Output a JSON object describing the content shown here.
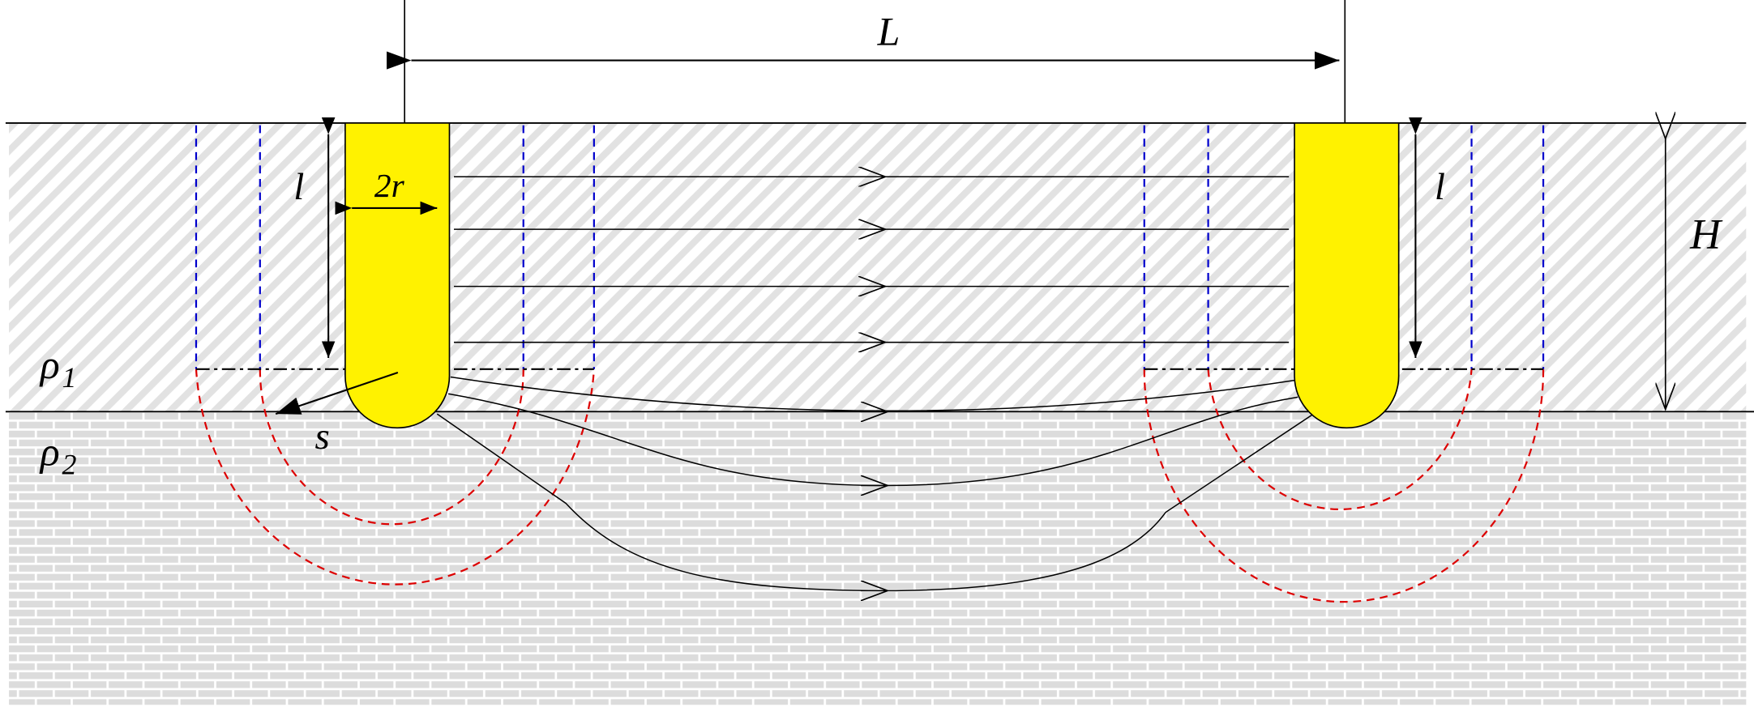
{
  "labels": {
    "length": "L",
    "depth_left": "l",
    "depth_right": "l",
    "diameter": "2r",
    "layer_thickness": "H",
    "spacing": "s"
  },
  "layers": {
    "top": {
      "rho": "ρ",
      "sub": "1"
    },
    "bottom": {
      "rho": "ρ",
      "sub": "2"
    }
  },
  "colors": {
    "electrode_fill": "#FFF200",
    "equipotential_blue": "#0000CC",
    "equipotential_red": "#DD0000",
    "line": "#000000",
    "top_layer_hatch": "#D6D6D6",
    "brick_pattern": "#C8C8C8"
  }
}
